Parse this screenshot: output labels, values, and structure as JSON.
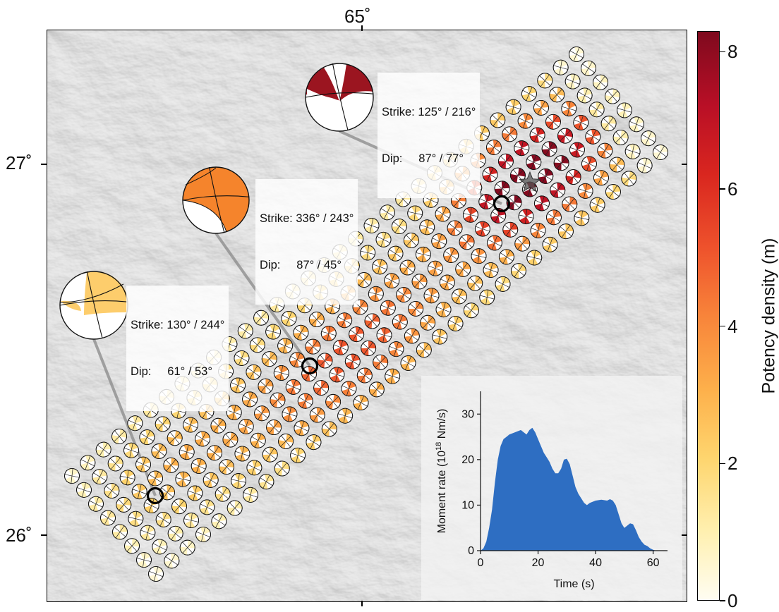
{
  "map": {
    "lon_label": "65˚",
    "lat_labels": [
      "27˚",
      "26˚"
    ],
    "lat_values": [
      27,
      26
    ],
    "lon_values": [
      65
    ],
    "basemap": "grayscale shaded relief",
    "fault_grid": {
      "along_strike_count": 33,
      "down_dip_count": 8,
      "description": "potency-density coloured beachballs along the rupture plane"
    },
    "focal_mechanisms": [
      {
        "id": "north",
        "strike_label": "Strike: 125° / 216°",
        "dip_label": "Dip:     87° / 77°",
        "potency": 8.0,
        "color": "#9b1520"
      },
      {
        "id": "middle",
        "strike_label": "Strike: 336° / 243°",
        "dip_label": "Dip:     87° / 45°",
        "potency": 4.7,
        "color": "#f5842c"
      },
      {
        "id": "south",
        "strike_label": "Strike: 130° / 244°",
        "dip_label": "Dip:     61° / 53°",
        "potency": 2.6,
        "color": "#fdcd6c"
      }
    ],
    "epicenter_marker": "star-icon"
  },
  "colorbar": {
    "title": "Potency density (m)",
    "ticks": [
      "0",
      "2",
      "4",
      "6",
      "8"
    ],
    "tick_values": [
      0,
      2,
      4,
      6,
      8
    ],
    "range": [
      0,
      8.3
    ],
    "colors": [
      "#fffdf2",
      "#fff0b0",
      "#fed56e",
      "#fdb04b",
      "#f8843a",
      "#ee522c",
      "#d9261f",
      "#b90f26",
      "#7f0a1e"
    ]
  },
  "chart_data": {
    "type": "area",
    "title": "",
    "xlabel": "Time (s)",
    "ylabel": "Moment rate (10",
    "ylabel_sup": "18",
    "ylabel_unit": " Nm/s)",
    "xlim": [
      0,
      65
    ],
    "ylim": [
      0,
      35
    ],
    "xticks": [
      0,
      20,
      40,
      60
    ],
    "yticks": [
      0,
      10,
      20,
      30
    ],
    "color": "#2e6ec2",
    "x": [
      0,
      1,
      2,
      3,
      4,
      5,
      6,
      7,
      8,
      9,
      10,
      12,
      14,
      15,
      16,
      17,
      18,
      19,
      20,
      21,
      22,
      23,
      24,
      25,
      26,
      27,
      28,
      29,
      30,
      31,
      32,
      33,
      34,
      35,
      36,
      37,
      38,
      40,
      42,
      44,
      45,
      46,
      47,
      48,
      49,
      50,
      51,
      52,
      53,
      54,
      55,
      56,
      57,
      58,
      59,
      60,
      61
    ],
    "y": [
      0,
      0.5,
      2,
      5,
      9,
      15,
      20,
      23,
      24.5,
      25,
      25.5,
      26,
      26.5,
      26,
      25.5,
      26.5,
      27,
      26,
      24.5,
      23,
      21.5,
      20.5,
      19.5,
      18,
      17,
      17,
      18,
      20,
      20.2,
      19,
      16.5,
      14,
      12.5,
      11.5,
      10.5,
      10,
      10.5,
      11,
      11.2,
      11,
      11.3,
      11,
      10,
      8,
      6,
      5,
      5.5,
      6,
      5.8,
      4.5,
      3,
      2,
      1.3,
      1,
      0.5,
      0.2,
      0
    ]
  }
}
